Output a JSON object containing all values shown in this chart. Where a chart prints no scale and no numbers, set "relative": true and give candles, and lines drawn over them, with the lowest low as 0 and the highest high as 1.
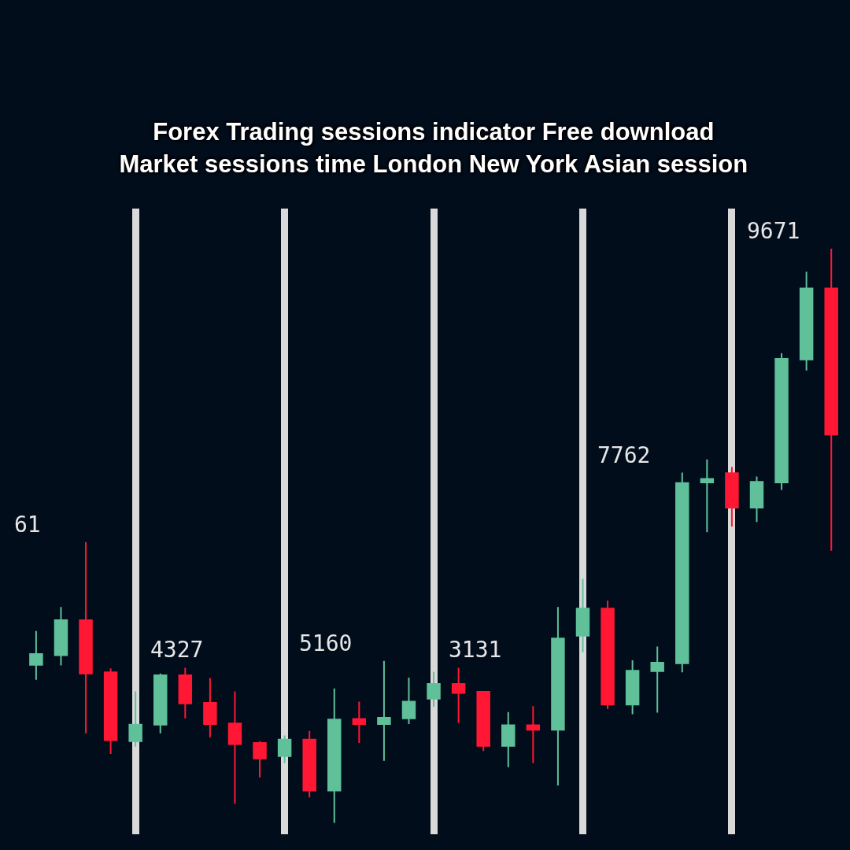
{
  "chart_data": {
    "type": "candlestick",
    "title": "Forex Trading sessions indicator Free download\nMarket sessions time London New York Asian session",
    "relative": true,
    "grid": "x",
    "categories": [
      null,
      null,
      null,
      null,
      null,
      null,
      null,
      null,
      null,
      null,
      null,
      null,
      null,
      null,
      null,
      null,
      null,
      null,
      null,
      null,
      null,
      null,
      null,
      null,
      null,
      null,
      null,
      null,
      null,
      null,
      null,
      null,
      null
    ],
    "ohlc": [
      [
        0.275,
        0.334,
        0.249,
        0.294
      ],
      [
        0.292,
        0.376,
        0.274,
        0.353
      ],
      [
        0.353,
        0.489,
        0.156,
        0.26
      ],
      [
        0.262,
        0.269,
        0.12,
        0.144
      ],
      [
        0.142,
        0.229,
        0.133,
        0.171
      ],
      [
        0.171,
        0.26,
        0.156,
        0.257
      ],
      [
        0.257,
        0.27,
        0.182,
        0.208
      ],
      [
        0.209,
        0.252,
        0.149,
        0.172
      ],
      [
        0.173,
        0.229,
        0.033,
        0.137
      ],
      [
        0.139,
        0.142,
        0.079,
        0.112
      ],
      [
        0.116,
        0.152,
        0.104,
        0.145
      ],
      [
        0.145,
        0.16,
        0.044,
        0.056
      ],
      [
        0.056,
        0.234,
        0.0,
        0.18
      ],
      [
        0.181,
        0.211,
        0.139,
        0.172
      ],
      [
        0.172,
        0.282,
        0.108,
        0.183
      ],
      [
        0.182,
        0.253,
        0.172,
        0.211
      ],
      [
        0.216,
        0.263,
        0.202,
        0.242
      ],
      [
        0.242,
        0.27,
        0.174,
        0.226
      ],
      [
        0.228,
        0.229,
        0.125,
        0.134
      ],
      [
        0.134,
        0.193,
        0.097,
        0.17
      ],
      [
        0.17,
        0.203,
        0.104,
        0.162
      ],
      [
        0.162,
        0.376,
        0.065,
        0.321
      ],
      [
        0.326,
        0.425,
        0.297,
        0.373
      ],
      [
        0.373,
        0.387,
        0.198,
        0.206
      ],
      [
        0.206,
        0.283,
        0.189,
        0.265
      ],
      [
        0.264,
        0.307,
        0.192,
        0.279
      ],
      [
        0.278,
        0.61,
        0.262,
        0.592
      ],
      [
        0.593,
        0.633,
        0.506,
        0.599
      ],
      [
        0.609,
        0.62,
        0.516,
        0.549
      ],
      [
        0.549,
        0.603,
        0.524,
        0.594
      ],
      [
        0.593,
        0.818,
        0.58,
        0.808
      ],
      [
        0.807,
        0.96,
        0.788,
        0.931
      ],
      [
        0.931,
        1.0,
        0.474,
        0.676
      ]
    ],
    "colors": [
      "#5fc09a",
      "#5fc09a",
      "#ff1733",
      "#ff1733",
      "#5fc09a",
      "#5fc09a",
      "#ff1733",
      "#ff1733",
      "#ff1733",
      "#ff1733",
      "#5fc09a",
      "#ff1733",
      "#5fc09a",
      "#ff1733",
      "#5fc09a",
      "#5fc09a",
      "#5fc09a",
      "#ff1733",
      "#ff1733",
      "#5fc09a",
      "#ff1733",
      "#5fc09a",
      "#5fc09a",
      "#ff1733",
      "#5fc09a",
      "#5fc09a",
      "#5fc09a",
      "#5fc09a",
      "#ff1733",
      "#5fc09a",
      "#5fc09a",
      "#5fc09a",
      "#ff1733"
    ],
    "annotations": [
      "61",
      "4327",
      "5160",
      "3131",
      "7762",
      "9671"
    ]
  }
}
